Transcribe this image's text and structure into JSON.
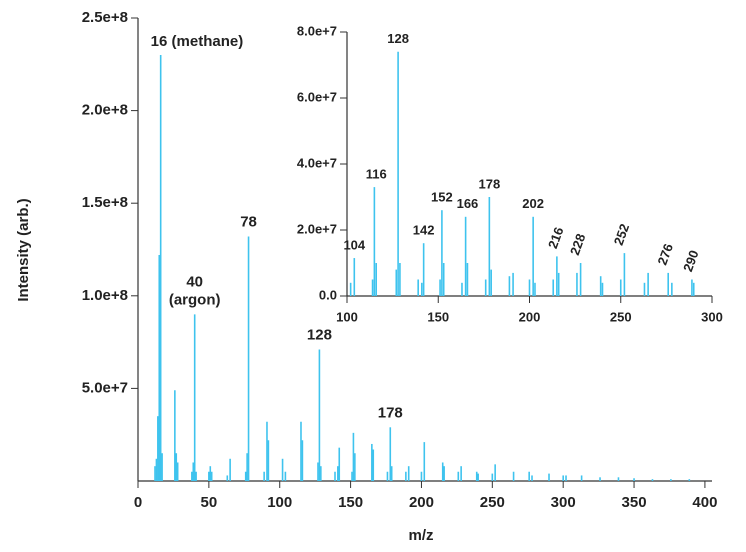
{
  "chart_data": [
    {
      "type": "bar",
      "x_label": "m/z",
      "y_label": "Intensity (arb.)",
      "color": "#3ec3ee",
      "x": [
        12,
        13,
        14,
        15,
        16,
        17,
        26,
        27,
        28,
        38,
        39,
        40,
        41,
        50,
        51,
        52,
        63,
        65,
        76,
        77,
        78,
        89,
        91,
        92,
        102,
        104,
        115,
        116,
        127,
        128,
        129,
        139,
        141,
        142,
        151,
        152,
        153,
        165,
        166,
        176,
        178,
        179,
        189,
        191,
        200,
        202,
        215,
        216,
        226,
        228,
        239,
        240,
        250,
        252,
        265,
        276,
        278,
        290,
        300,
        302,
        313,
        326,
        339,
        350,
        363,
        376,
        389
      ],
      "values": [
        8000000,
        12000000,
        35000000,
        122000000,
        230000000,
        15000000,
        49000000,
        15000000,
        10000000,
        5000000,
        10000000,
        90000000,
        5000000,
        5000000,
        8000000,
        5000000,
        3000000,
        12000000,
        5000000,
        15000000,
        132000000,
        5000000,
        32000000,
        22000000,
        12000000,
        5000000,
        32000000,
        22000000,
        10000000,
        71000000,
        8000000,
        5000000,
        8000000,
        18000000,
        5000000,
        26000000,
        15000000,
        20000000,
        17000000,
        5000000,
        29000000,
        8000000,
        5000000,
        8000000,
        5000000,
        21000000,
        10000000,
        8000000,
        5000000,
        8000000,
        5000000,
        4000000,
        4000000,
        9000000,
        5000000,
        5000000,
        3000000,
        4000000,
        3000000,
        3000000,
        3000000,
        2000000,
        2000000,
        1500000,
        1000000,
        1000000,
        1000000
      ],
      "xlim": [
        0,
        405
      ],
      "xticks": [
        0,
        50,
        100,
        150,
        200,
        250,
        300,
        350,
        400
      ],
      "ylim": [
        0,
        250000000
      ],
      "yticks": [
        {
          "value": 50000000,
          "label": "5.0e+7"
        },
        {
          "value": 100000000,
          "label": "1.0e+8"
        },
        {
          "value": 150000000,
          "label": "1.5e+8"
        },
        {
          "value": 200000000,
          "label": "2.0e+8"
        },
        {
          "value": 250000000,
          "label": "2.5e+8"
        }
      ],
      "annotations": [
        {
          "x": 16,
          "label": "16  (methane)"
        },
        {
          "x": 40,
          "label": "40\n(argon)"
        },
        {
          "x": 78,
          "label": "78"
        },
        {
          "x": 128,
          "label": "128"
        },
        {
          "x": 178,
          "label": "178"
        }
      ]
    },
    {
      "type": "bar",
      "color": "#3ec3ee",
      "tick_color": "#1b7ea0",
      "x": [
        102,
        104,
        114,
        115,
        116,
        127,
        128,
        129,
        139,
        141,
        142,
        151,
        152,
        153,
        163,
        165,
        166,
        176,
        178,
        179,
        189,
        191,
        200,
        202,
        203,
        213,
        215,
        216,
        226,
        228,
        239,
        240,
        250,
        252,
        263,
        265,
        276,
        278,
        289,
        290
      ],
      "values": [
        4000000,
        11500000,
        5000000,
        33000000,
        10000000,
        8000000,
        74000000,
        10000000,
        5000000,
        4000000,
        16000000,
        5000000,
        26000000,
        10000000,
        4000000,
        24000000,
        10000000,
        5000000,
        30000000,
        8000000,
        6000000,
        7000000,
        5000000,
        24000000,
        4000000,
        5000000,
        12000000,
        7000000,
        7000000,
        10000000,
        6000000,
        4000000,
        5000000,
        13000000,
        4000000,
        7000000,
        7000000,
        4000000,
        5000000,
        4000000
      ],
      "xlim": [
        100,
        300
      ],
      "xticks": [
        100,
        150,
        200,
        250,
        300
      ],
      "ylim": [
        0,
        80000000
      ],
      "yticks": [
        {
          "value": 0,
          "label": "0.0"
        },
        {
          "value": 20000000,
          "label": "2.0e+7"
        },
        {
          "value": 40000000,
          "label": "4.0e+7"
        },
        {
          "value": 60000000,
          "label": "6.0e+7"
        },
        {
          "value": 80000000,
          "label": "8.0e+7"
        }
      ],
      "peak_labels": [
        104,
        116,
        128,
        142,
        152,
        166,
        178,
        202,
        216,
        228,
        252,
        276,
        290
      ]
    }
  ]
}
